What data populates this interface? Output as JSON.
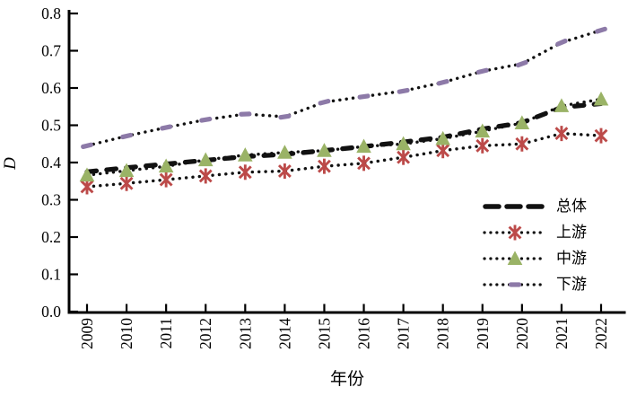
{
  "chart_data": {
    "type": "line",
    "title": "",
    "xlabel": "年份",
    "ylabel": "D",
    "ylim": [
      0.0,
      0.8
    ],
    "grid": false,
    "legend_position": "lower-right",
    "categories": [
      "2009",
      "2010",
      "2011",
      "2012",
      "2013",
      "2014",
      "2015",
      "2016",
      "2017",
      "2018",
      "2019",
      "2020",
      "2021",
      "2022"
    ],
    "y_ticks": [
      "0.0",
      "0.1",
      "0.2",
      "0.3",
      "0.4",
      "0.5",
      "0.6",
      "0.7",
      "0.8"
    ],
    "axis_color": "#000000",
    "series": [
      {
        "name": "总体",
        "style": "thick-dashed",
        "color": "#111111",
        "marker": "none",
        "marker_color": "#111111",
        "values": [
          0.375,
          0.386,
          0.396,
          0.406,
          0.416,
          0.422,
          0.432,
          0.443,
          0.455,
          0.468,
          0.49,
          0.507,
          0.548,
          0.558
        ]
      },
      {
        "name": "上游",
        "style": "dotted",
        "color": "#111111",
        "marker": "asterisk",
        "marker_color": "#bc4a49",
        "values": [
          0.335,
          0.344,
          0.354,
          0.364,
          0.374,
          0.377,
          0.39,
          0.398,
          0.414,
          0.432,
          0.445,
          0.45,
          0.478,
          0.472
        ]
      },
      {
        "name": "中游",
        "style": "dotted",
        "color": "#111111",
        "marker": "triangle",
        "marker_color": "#9ab366",
        "values": [
          0.366,
          0.378,
          0.39,
          0.407,
          0.42,
          0.427,
          0.432,
          0.443,
          0.45,
          0.464,
          0.484,
          0.506,
          0.552,
          0.57
        ]
      },
      {
        "name": "下游",
        "style": "dotted",
        "color": "#111111",
        "marker": "dash",
        "marker_color": "#8d7aa8",
        "values": [
          0.445,
          0.471,
          0.494,
          0.515,
          0.53,
          0.523,
          0.562,
          0.577,
          0.592,
          0.615,
          0.645,
          0.665,
          0.722,
          0.755
        ]
      }
    ]
  }
}
